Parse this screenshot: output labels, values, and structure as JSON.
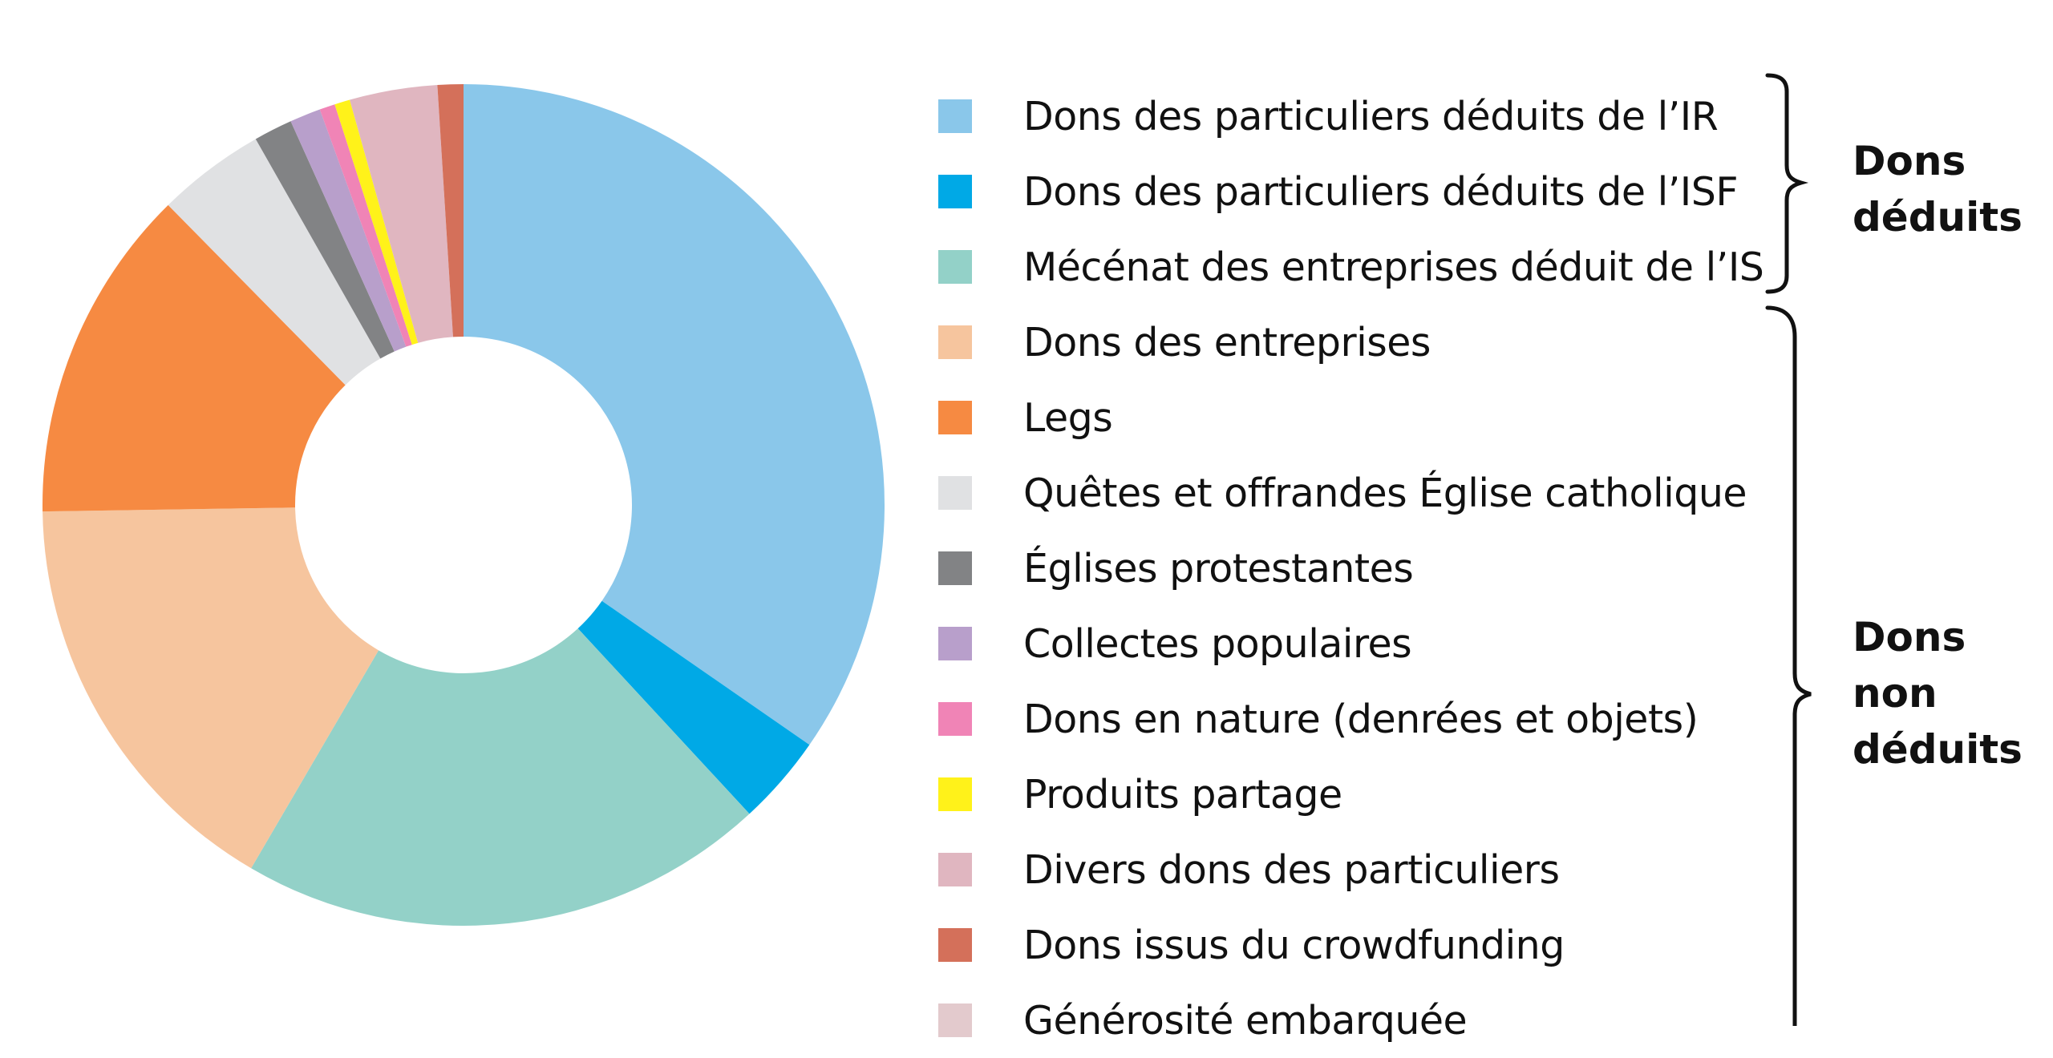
{
  "chart_data": {
    "type": "pie",
    "donut": true,
    "categories": [
      "Dons des particuliers déduits de l’IR",
      "Dons des particuliers déduits de l’ISF",
      "Mécénat des entreprises déduit de l’IS",
      "Dons des entreprises",
      "Legs",
      "Quêtes et offrandes Église catholique",
      "Églises protestantes",
      "Collectes populaires",
      "Dons en nature (denrées et objets)",
      "Produits partage",
      "Divers dons des particuliers",
      "Dons issus du crowdfunding",
      "Générosité embarquée"
    ],
    "values": [
      35.0,
      3.5,
      20.5,
      16.5,
      13.0,
      4.2,
      1.5,
      1.2,
      0.6,
      0.6,
      3.4,
      1.0,
      0
    ],
    "colors": [
      "#8ac7ea",
      "#00a9e6",
      "#93d1c8",
      "#f6c59e",
      "#f68a42",
      "#e0e1e3",
      "#828385",
      "#b89fcb",
      "#f084b6",
      "#fff21a",
      "#e0b6c0",
      "#d4705a",
      "#e3cacd"
    ],
    "legend_position": "right",
    "groups": [
      {
        "label": "Dons\ndéduits",
        "members": [
          0,
          1,
          2
        ]
      },
      {
        "label": "Dons\nnon\ndéduits",
        "members": [
          3,
          4,
          5,
          6,
          7,
          8,
          9,
          10,
          11,
          12
        ]
      }
    ]
  }
}
